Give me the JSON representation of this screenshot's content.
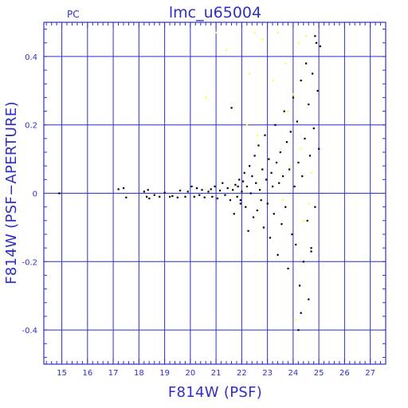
{
  "header": {
    "camera": "PC",
    "title": "lmc_u65004"
  },
  "colors": {
    "axes": "#2f2fc8",
    "main_points": "#000000",
    "faint_points": "#ffff33",
    "background": "#ffffff"
  },
  "chart_data": {
    "type": "scatter",
    "title": "lmc_u65004",
    "xlabel": "F814W (PSF)",
    "ylabel": "F814W (PSF−APERTURE)",
    "xlim": [
      14.3,
      27.6
    ],
    "ylim": [
      -0.5,
      0.5
    ],
    "x_ticks": [
      15,
      16,
      17,
      18,
      19,
      20,
      21,
      22,
      23,
      24,
      25,
      26,
      27
    ],
    "x_tick_labels": [
      "15",
      "16",
      "17",
      "18",
      "19",
      "20",
      "21",
      "22",
      "23",
      "24",
      "25",
      "26",
      "27"
    ],
    "y_ticks": [
      -0.4,
      -0.2,
      0,
      0.2,
      0.4
    ],
    "y_tick_labels": [
      "-0.4",
      "-0.2",
      "0",
      "0.2",
      "0.4"
    ],
    "grid": true,
    "minor_ticks": true,
    "series": [
      {
        "color": "#000000",
        "points": [
          [
            14.9,
            0.0
          ],
          [
            17.2,
            0.012
          ],
          [
            17.4,
            0.015
          ],
          [
            17.5,
            -0.012
          ],
          [
            18.2,
            0.005
          ],
          [
            18.3,
            -0.01
          ],
          [
            18.35,
            0.01
          ],
          [
            18.4,
            -0.015
          ],
          [
            18.6,
            -0.005
          ],
          [
            18.8,
            -0.01
          ],
          [
            19.0,
            0.002
          ],
          [
            19.2,
            -0.01
          ],
          [
            19.3,
            -0.008
          ],
          [
            19.5,
            -0.012
          ],
          [
            19.6,
            0.008
          ],
          [
            19.8,
            -0.01
          ],
          [
            19.9,
            0.005
          ],
          [
            20.05,
            0.02
          ],
          [
            20.15,
            -0.01
          ],
          [
            20.25,
            0.015
          ],
          [
            20.35,
            -0.005
          ],
          [
            20.45,
            0.01
          ],
          [
            20.55,
            -0.012
          ],
          [
            20.7,
            0.005
          ],
          [
            20.8,
            0.012
          ],
          [
            20.85,
            -0.01
          ],
          [
            20.95,
            0.02
          ],
          [
            21.05,
            -0.015
          ],
          [
            21.15,
            0.008
          ],
          [
            21.25,
            0.03
          ],
          [
            21.35,
            -0.005
          ],
          [
            21.45,
            0.015
          ],
          [
            21.55,
            -0.02
          ],
          [
            21.65,
            0.01
          ],
          [
            21.75,
            0.025
          ],
          [
            21.82,
            -0.01
          ],
          [
            21.9,
            0.04
          ],
          [
            21.95,
            -0.02
          ],
          [
            22.0,
            0.005
          ],
          [
            21.6,
            0.25
          ],
          [
            21.7,
            -0.06
          ],
          [
            21.85,
            0.02
          ],
          [
            21.95,
            -0.03
          ],
          [
            22.05,
            0.035
          ],
          [
            22.1,
            0.06
          ],
          [
            22.15,
            -0.04
          ],
          [
            22.2,
            0.02
          ],
          [
            22.25,
            -0.11
          ],
          [
            22.3,
            0.08
          ],
          [
            22.35,
            0.0
          ],
          [
            22.4,
            0.05
          ],
          [
            22.45,
            -0.07
          ],
          [
            22.5,
            0.11
          ],
          [
            22.55,
            0.03
          ],
          [
            22.6,
            -0.05
          ],
          [
            22.65,
            0.14
          ],
          [
            22.7,
            0.01
          ],
          [
            22.75,
            -0.02
          ],
          [
            22.8,
            0.07
          ],
          [
            22.85,
            -0.1
          ],
          [
            22.9,
            0.17
          ],
          [
            22.95,
            0.04
          ],
          [
            23.0,
            -0.03
          ],
          [
            23.05,
            0.1
          ],
          [
            23.1,
            -0.13
          ],
          [
            23.15,
            0.06
          ],
          [
            23.2,
            0.02
          ],
          [
            23.25,
            -0.06
          ],
          [
            23.3,
            0.2
          ],
          [
            23.35,
            0.09
          ],
          [
            23.4,
            -0.18
          ],
          [
            23.45,
            0.03
          ],
          [
            23.5,
            0.12
          ],
          [
            23.55,
            -0.09
          ],
          [
            23.6,
            0.05
          ],
          [
            23.65,
            0.24
          ],
          [
            23.7,
            -0.04
          ],
          [
            23.75,
            0.15
          ],
          [
            23.8,
            -0.22
          ],
          [
            23.85,
            0.07
          ],
          [
            23.9,
            0.18
          ],
          [
            23.95,
            -0.12
          ],
          [
            24.0,
            0.28
          ],
          [
            24.05,
            0.02
          ],
          [
            24.1,
            -0.15
          ],
          [
            24.15,
            0.21
          ],
          [
            24.2,
            0.09
          ],
          [
            24.25,
            -0.27
          ],
          [
            24.3,
            0.33
          ],
          [
            24.35,
            0.05
          ],
          [
            24.4,
            -0.2
          ],
          [
            24.45,
            0.16
          ],
          [
            24.5,
            0.38
          ],
          [
            24.55,
            -0.08
          ],
          [
            24.6,
            0.26
          ],
          [
            24.65,
            0.11
          ],
          [
            24.7,
            -0.17
          ],
          [
            24.75,
            0.35
          ],
          [
            24.8,
            0.19
          ],
          [
            24.85,
            -0.04
          ],
          [
            24.9,
            0.44
          ],
          [
            24.95,
            0.3
          ],
          [
            25.0,
            0.13
          ],
          [
            24.3,
            -0.35
          ],
          [
            24.2,
            -0.4
          ],
          [
            24.6,
            -0.31
          ],
          [
            24.7,
            -0.16
          ],
          [
            24.85,
            0.46
          ],
          [
            25.05,
            0.43
          ]
        ]
      },
      {
        "color": "#ffff33",
        "points": [
          [
            20.6,
            0.28
          ],
          [
            21.0,
            0.47
          ],
          [
            21.4,
            0.42
          ],
          [
            22.3,
            0.35
          ],
          [
            22.5,
            0.47
          ],
          [
            22.8,
            0.45
          ],
          [
            22.6,
            0.17
          ],
          [
            22.2,
            0.2
          ],
          [
            23.2,
            0.33
          ],
          [
            23.4,
            0.47
          ],
          [
            23.7,
            0.38
          ],
          [
            23.8,
            0.24
          ],
          [
            24.0,
            0.29
          ],
          [
            24.2,
            0.44
          ],
          [
            24.5,
            0.46
          ],
          [
            24.3,
            0.13
          ],
          [
            23.9,
            0.08
          ],
          [
            24.6,
            -0.03
          ],
          [
            24.4,
            -0.08
          ],
          [
            23.6,
            -0.02
          ],
          [
            24.1,
            -0.37
          ],
          [
            24.7,
            0.06
          ]
        ]
      }
    ]
  }
}
